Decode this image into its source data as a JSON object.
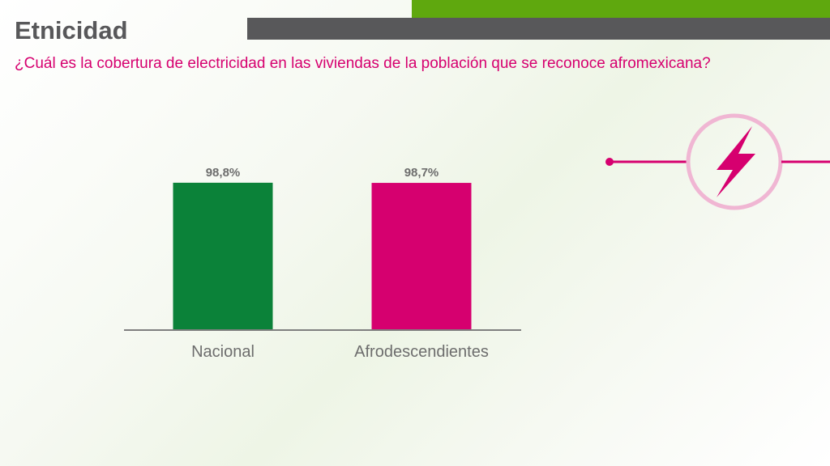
{
  "header": {
    "title": "Etnicidad",
    "subtitle": "¿Cuál es la cobertura de electricidad en las viviendas de la población que se reconoce afromexicana?"
  },
  "colors": {
    "accent_green": "#5fa80e",
    "header_gray": "#58585a",
    "brand_pink": "#d6006f",
    "icon_pink_light": "#f0b6d3"
  },
  "icons": {
    "electricity": "lightning-bolt-icon"
  },
  "chart_data": {
    "type": "bar",
    "title": "",
    "xlabel": "",
    "ylabel": "",
    "categories": [
      "Nacional",
      "Afrodescendientes"
    ],
    "values": [
      98.8,
      98.7
    ],
    "value_labels": [
      "98,8%",
      "98,7%"
    ],
    "bar_colors": [
      "#0b8239",
      "#d6006f"
    ],
    "ylim": [
      0,
      115
    ],
    "grid": false,
    "legend": "none"
  }
}
